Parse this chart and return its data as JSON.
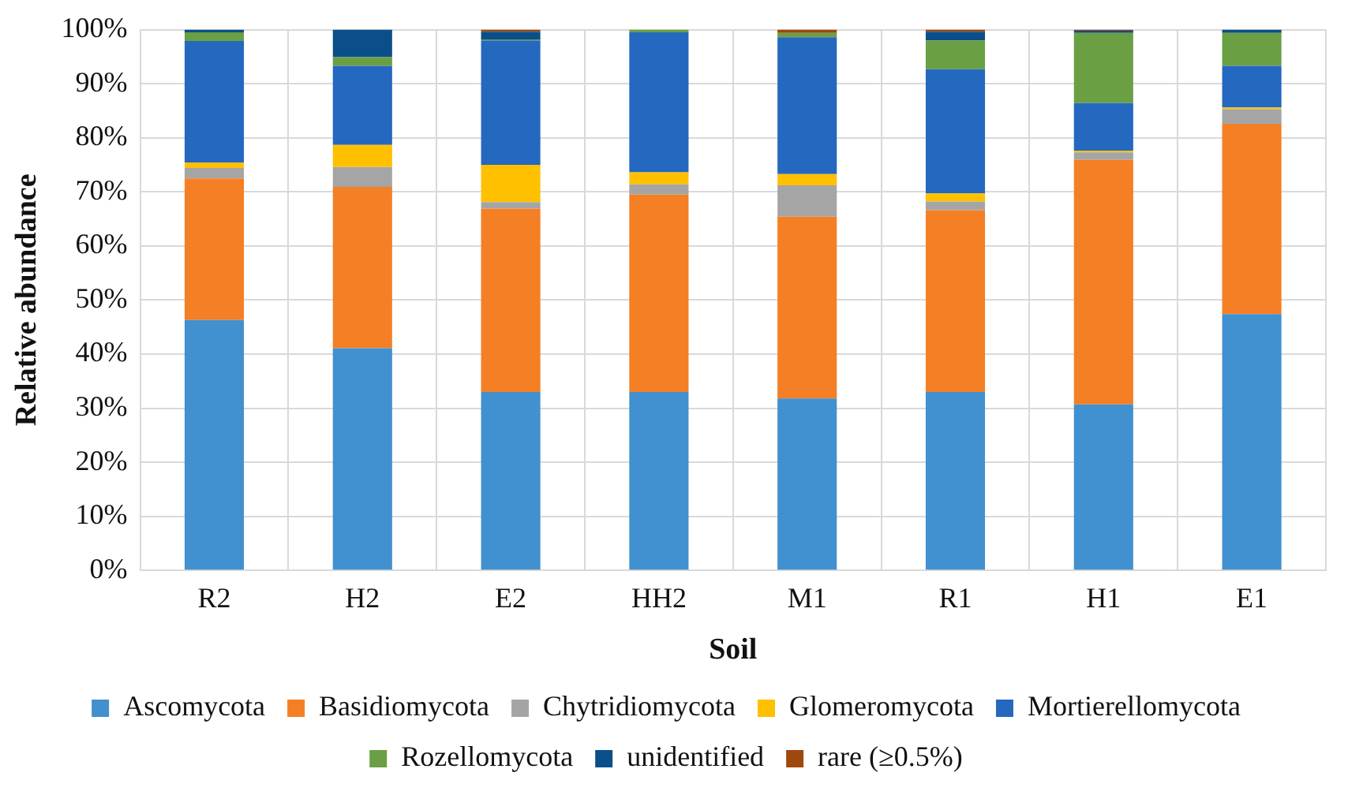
{
  "chart_data": {
    "type": "bar",
    "stacked": true,
    "xlabel": "Soil",
    "ylabel": "Relative abundance",
    "categories": [
      "R2",
      "H2",
      "E2",
      "HH2",
      "M1",
      "R1",
      "H1",
      "E1"
    ],
    "ylim": [
      0,
      100
    ],
    "yticks": [
      {
        "value": 0,
        "label": "0%"
      },
      {
        "value": 10,
        "label": "10%"
      },
      {
        "value": 20,
        "label": "20%"
      },
      {
        "value": 30,
        "label": "30%"
      },
      {
        "value": 40,
        "label": "40%"
      },
      {
        "value": 50,
        "label": "50%"
      },
      {
        "value": 60,
        "label": "60%"
      },
      {
        "value": 70,
        "label": "70%"
      },
      {
        "value": 80,
        "label": "80%"
      },
      {
        "value": 90,
        "label": "90%"
      },
      {
        "value": 100,
        "label": "100%"
      }
    ],
    "grid": true,
    "legend": "bottom",
    "series": [
      {
        "name": "Ascomycota",
        "color": "#4190cf",
        "values": [
          46.3,
          41.1,
          33.0,
          33.0,
          31.8,
          33.0,
          30.7,
          47.4
        ]
      },
      {
        "name": "Basidiomycota",
        "color": "#f47f24",
        "values": [
          26.2,
          29.8,
          33.9,
          36.5,
          33.6,
          33.6,
          45.2,
          35.2
        ]
      },
      {
        "name": "Chytridiomycota",
        "color": "#a5a5a5",
        "values": [
          1.9,
          3.7,
          1.2,
          1.9,
          5.8,
          1.6,
          1.4,
          2.7
        ]
      },
      {
        "name": "Glomeromycota",
        "color": "#ffc000",
        "values": [
          1.0,
          4.1,
          6.9,
          2.2,
          2.1,
          1.5,
          0.3,
          0.3
        ]
      },
      {
        "name": "Mortierellomycota",
        "color": "#2468bf",
        "values": [
          22.5,
          14.6,
          23.0,
          25.9,
          25.3,
          23.0,
          8.8,
          7.7
        ]
      },
      {
        "name": "Rozellomycota",
        "color": "#6a9f44",
        "values": [
          1.6,
          1.6,
          0.2,
          0.5,
          0.8,
          5.3,
          13.0,
          6.1
        ]
      },
      {
        "name": "unidentified",
        "color": "#0b4f8a",
        "values": [
          0.5,
          5.1,
          1.4,
          0,
          0,
          1.6,
          0.4,
          0.6
        ]
      },
      {
        "name": "rare (≥0.5%)",
        "color": "#9e480e",
        "values": [
          0,
          0,
          0.4,
          0,
          0.6,
          0.4,
          0.2,
          0
        ]
      }
    ]
  }
}
